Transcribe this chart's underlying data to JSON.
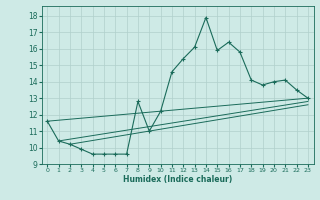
{
  "xlabel": "Humidex (Indice chaleur)",
  "bg_color": "#ceeae6",
  "grid_color": "#b0d0cc",
  "line_color": "#1a6b5a",
  "xlim": [
    -0.5,
    23.5
  ],
  "ylim": [
    9,
    18.6
  ],
  "xticks": [
    0,
    1,
    2,
    3,
    4,
    5,
    6,
    7,
    8,
    9,
    10,
    11,
    12,
    13,
    14,
    15,
    16,
    17,
    18,
    19,
    20,
    21,
    22,
    23
  ],
  "yticks": [
    9,
    10,
    11,
    12,
    13,
    14,
    15,
    16,
    17,
    18
  ],
  "series": [
    [
      0,
      11.6
    ],
    [
      1,
      10.4
    ],
    [
      2,
      10.2
    ],
    [
      3,
      9.9
    ],
    [
      4,
      9.6
    ],
    [
      5,
      9.6
    ],
    [
      6,
      9.6
    ],
    [
      7,
      9.6
    ],
    [
      8,
      12.8
    ],
    [
      9,
      11.0
    ],
    [
      10,
      12.2
    ],
    [
      11,
      14.6
    ],
    [
      12,
      15.4
    ],
    [
      13,
      16.1
    ],
    [
      14,
      17.9
    ],
    [
      15,
      15.9
    ],
    [
      16,
      16.4
    ],
    [
      17,
      15.8
    ],
    [
      18,
      14.1
    ],
    [
      19,
      13.8
    ],
    [
      20,
      14.0
    ],
    [
      21,
      14.1
    ],
    [
      22,
      13.5
    ],
    [
      23,
      13.0
    ]
  ],
  "line2_x": [
    0,
    23
  ],
  "line2_y": [
    11.6,
    13.0
  ],
  "line3_x": [
    1,
    23
  ],
  "line3_y": [
    10.4,
    12.8
  ],
  "line4_x": [
    2,
    23
  ],
  "line4_y": [
    10.2,
    12.6
  ]
}
